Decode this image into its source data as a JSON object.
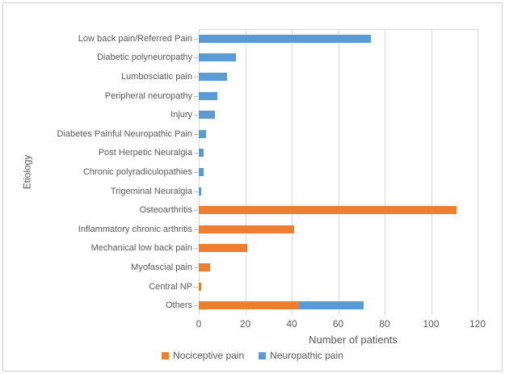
{
  "chart_data": {
    "type": "bar",
    "orientation": "horizontal",
    "stacked": true,
    "title": "",
    "categories": [
      "Low back pain/Referred Pain",
      "Diabetic polyneuropathy",
      "Lumbosciatic pain",
      "Peripheral neuropathy",
      "Injury",
      "Diabetes Painful Neuropathic Pain",
      "Post Herpetic Neuralgia",
      "Chronic polyradiculopathies",
      "Trigeminal Neuralgia",
      "Osteoarthritis",
      "Inflammatory chronic arthritis",
      "Mechanical low back pain",
      "Myofascial pain",
      "Central NP",
      "Others"
    ],
    "series": [
      {
        "name": "Nociceptive pain",
        "color": "#ED7D31",
        "values": [
          0,
          0,
          0,
          0,
          0,
          0,
          0,
          0,
          0,
          111,
          41,
          21,
          5,
          1,
          43
        ]
      },
      {
        "name": "Neuropathic pain",
        "color": "#5B9BD5",
        "values": [
          74,
          16,
          12,
          8,
          7,
          3,
          2,
          2,
          1,
          0,
          0,
          0,
          0,
          0,
          28
        ]
      }
    ],
    "xlabel": "Number of patients",
    "ylabel": "Etiology",
    "xlim": [
      0,
      120
    ],
    "xticks": [
      0,
      20,
      40,
      60,
      80,
      100,
      120
    ],
    "grid": true,
    "legend_position": "bottom",
    "colors": {
      "text": "#595959",
      "gridline": "#D9D9D9",
      "category_tick": "#BFBFBF",
      "frame_border": "#CFCFCF",
      "background": "#FFFFFF"
    }
  }
}
